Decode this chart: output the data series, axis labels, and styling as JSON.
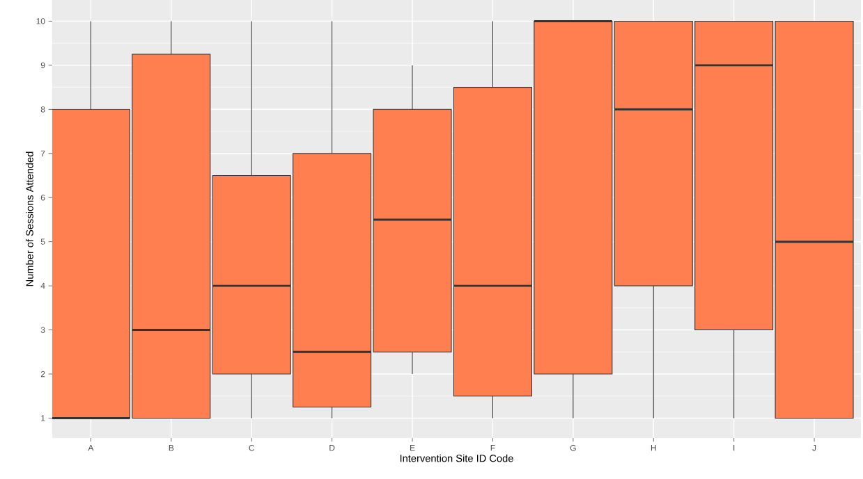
{
  "chart_data": {
    "type": "box",
    "xlabel": "Intervention Site ID Code",
    "ylabel": "Number of Sessions Attended",
    "categories": [
      "A",
      "B",
      "C",
      "D",
      "E",
      "F",
      "G",
      "H",
      "I",
      "J"
    ],
    "color": "#ff7f50",
    "boxes": [
      {
        "low": 1,
        "q1": 1,
        "median": 1,
        "q3": 8,
        "high": 10
      },
      {
        "low": 1,
        "q1": 1,
        "median": 3,
        "q3": 9.25,
        "high": 10
      },
      {
        "low": 1,
        "q1": 2,
        "median": 4,
        "q3": 6.5,
        "high": 10
      },
      {
        "low": 1,
        "q1": 1.25,
        "median": 2.5,
        "q3": 7,
        "high": 10
      },
      {
        "low": 2,
        "q1": 2.5,
        "median": 5.5,
        "q3": 8,
        "high": 9
      },
      {
        "low": 1,
        "q1": 1.5,
        "median": 4,
        "q3": 8.5,
        "high": 10
      },
      {
        "low": 1,
        "q1": 2,
        "median": 10,
        "q3": 10,
        "high": 10
      },
      {
        "low": 1,
        "q1": 4,
        "median": 8,
        "q3": 10,
        "high": 10
      },
      {
        "low": 1,
        "q1": 3,
        "median": 9,
        "q3": 10,
        "high": 10
      },
      {
        "low": 1,
        "q1": 1,
        "median": 5,
        "q3": 10,
        "high": 10
      }
    ],
    "ylim": [
      0.55,
      10.48
    ],
    "yticks": [
      1,
      2,
      3,
      4,
      5,
      6,
      7,
      8,
      9,
      10
    ],
    "grid": true
  }
}
